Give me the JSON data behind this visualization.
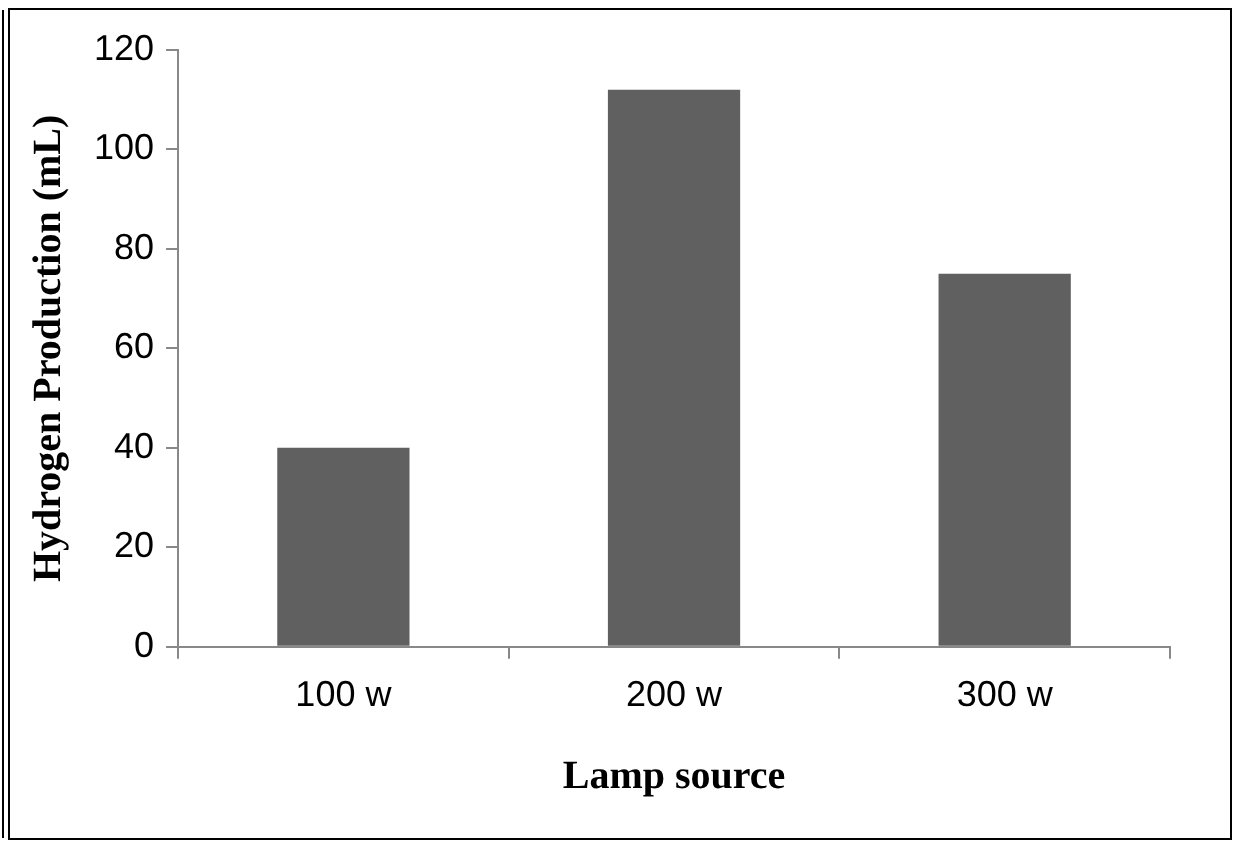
{
  "chart_data": {
    "type": "bar",
    "xlabel": "Lamp source",
    "ylabel": "Hydrogen Production (mL)",
    "categories": [
      "100 w",
      "200 w",
      "300 w"
    ],
    "values": [
      40,
      112,
      75
    ],
    "color": "#606060",
    "ylim": [
      0,
      120
    ],
    "yticks": [
      0,
      20,
      40,
      60,
      80,
      100,
      120
    ],
    "grid": false,
    "legend": false
  }
}
